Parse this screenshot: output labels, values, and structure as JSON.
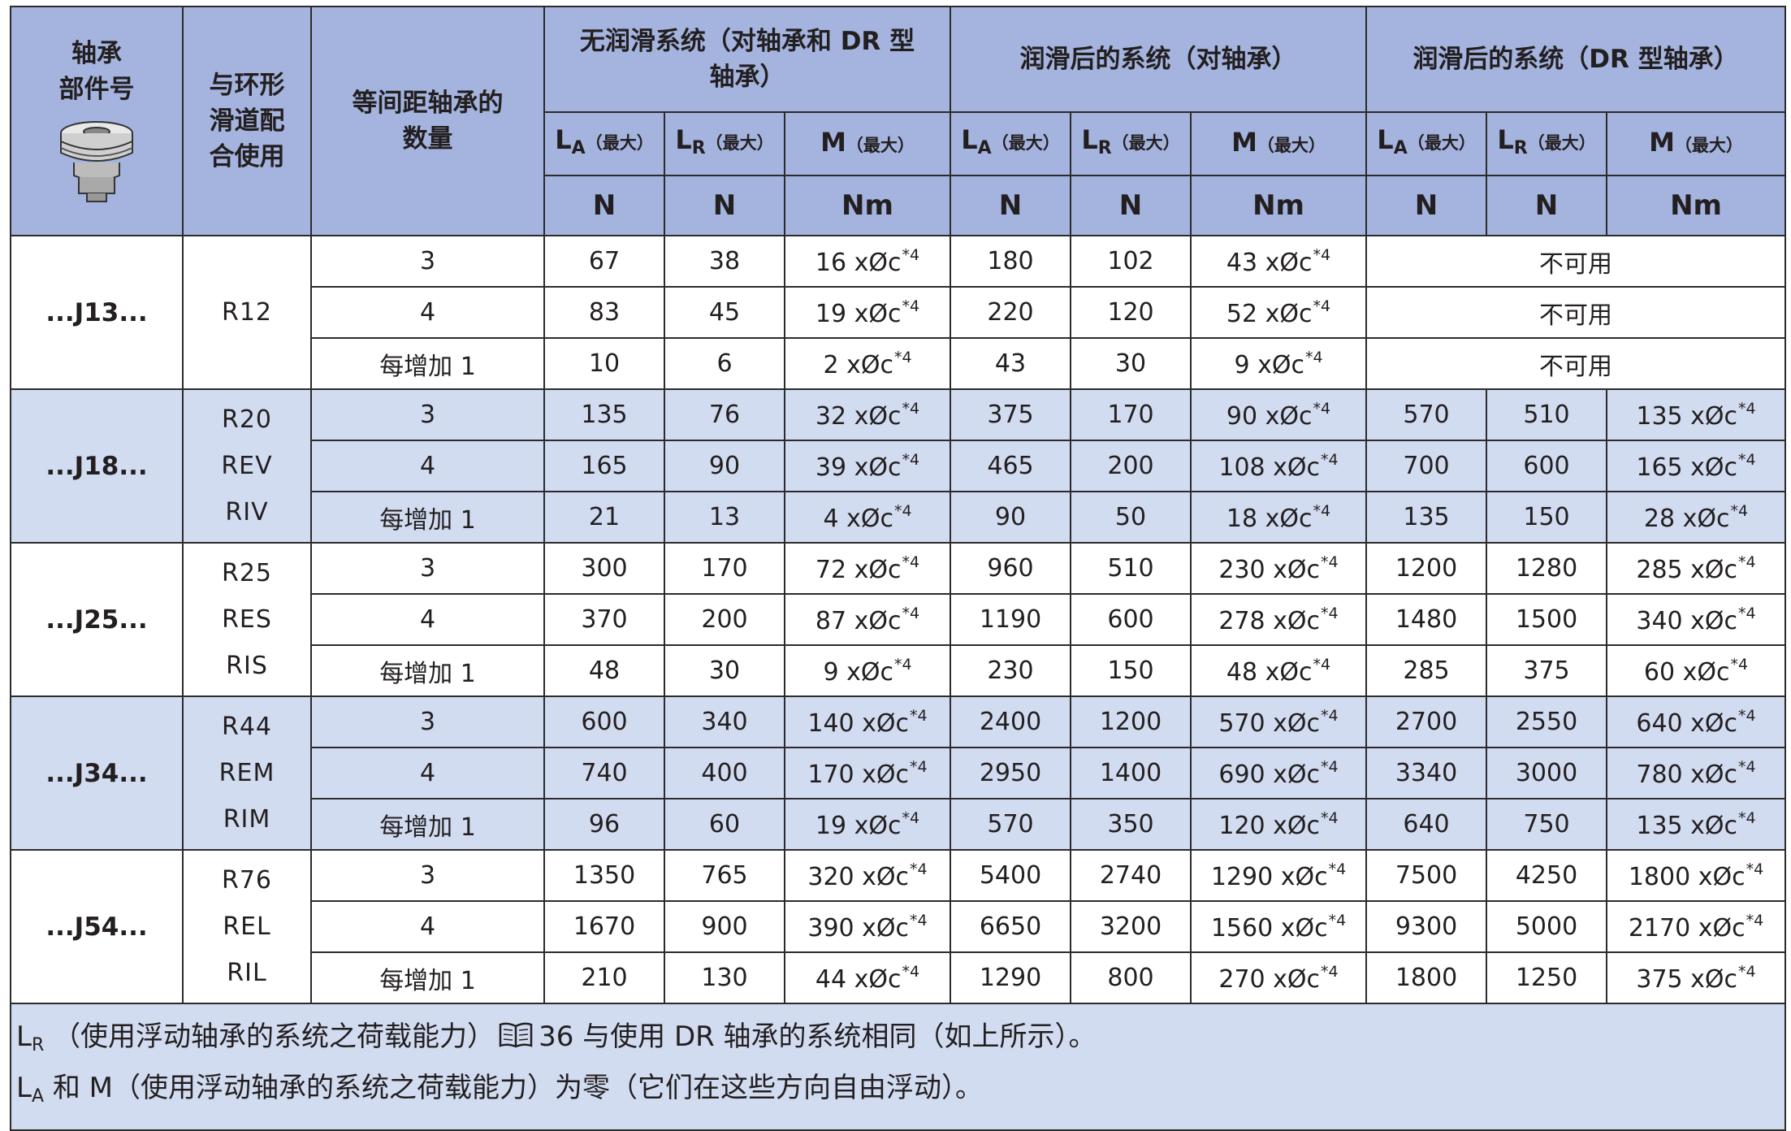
{
  "header": {
    "col_part": [
      "轴承",
      "部件号"
    ],
    "col_ring": [
      "与环形",
      "滑道配",
      "合使用"
    ],
    "col_qty": [
      "等间距轴承的",
      "数量"
    ],
    "group_unlub": [
      "无润滑系统（对轴承和 DR 型",
      "轴承）"
    ],
    "group_lub_bearing": "润滑后的系统（对轴承）",
    "group_lub_dr": "润滑后的系统（DR 型轴承）",
    "sub_la": "LA",
    "sub_lr": "LR",
    "sub_m": "M",
    "sub_max": "（最大）",
    "unit_n": "N",
    "unit_nm": "Nm",
    "bearing_icon": "bearing-illustration-icon"
  },
  "groups": [
    {
      "part": "...J13...",
      "rings": [
        "R12"
      ],
      "rows": [
        {
          "qty": "3",
          "u_la": "67",
          "u_lr": "38",
          "u_m": "16 xØc",
          "l_la": "180",
          "l_lr": "102",
          "l_m": "43 xØc",
          "na": "不可用"
        },
        {
          "qty": "4",
          "u_la": "83",
          "u_lr": "45",
          "u_m": "19 xØc",
          "l_la": "220",
          "l_lr": "120",
          "l_m": "52 xØc",
          "na": "不可用"
        },
        {
          "qty": "每增加 1",
          "u_la": "10",
          "u_lr": "6",
          "u_m": "2 xØc",
          "l_la": "43",
          "l_lr": "30",
          "l_m": "9 xØc",
          "na": "不可用"
        }
      ]
    },
    {
      "part": "...J18...",
      "rings": [
        "R20",
        "REV",
        "RIV"
      ],
      "rows": [
        {
          "qty": "3",
          "u_la": "135",
          "u_lr": "76",
          "u_m": "32 xØc",
          "l_la": "375",
          "l_lr": "170",
          "l_m": "90 xØc",
          "d_la": "570",
          "d_lr": "510",
          "d_m": "135 xØc"
        },
        {
          "qty": "4",
          "u_la": "165",
          "u_lr": "90",
          "u_m": "39 xØc",
          "l_la": "465",
          "l_lr": "200",
          "l_m": "108 xØc",
          "d_la": "700",
          "d_lr": "600",
          "d_m": "165 xØc"
        },
        {
          "qty": "每增加 1",
          "u_la": "21",
          "u_lr": "13",
          "u_m": "4 xØc",
          "l_la": "90",
          "l_lr": "50",
          "l_m": "18 xØc",
          "d_la": "135",
          "d_lr": "150",
          "d_m": "28 xØc"
        }
      ]
    },
    {
      "part": "...J25...",
      "rings": [
        "R25",
        "RES",
        "RIS"
      ],
      "rows": [
        {
          "qty": "3",
          "u_la": "300",
          "u_lr": "170",
          "u_m": "72 xØc",
          "l_la": "960",
          "l_lr": "510",
          "l_m": "230 xØc",
          "d_la": "1200",
          "d_lr": "1280",
          "d_m": "285 xØc"
        },
        {
          "qty": "4",
          "u_la": "370",
          "u_lr": "200",
          "u_m": "87 xØc",
          "l_la": "1190",
          "l_lr": "600",
          "l_m": "278 xØc",
          "d_la": "1480",
          "d_lr": "1500",
          "d_m": "340 xØc"
        },
        {
          "qty": "每增加 1",
          "u_la": "48",
          "u_lr": "30",
          "u_m": "9 xØc",
          "l_la": "230",
          "l_lr": "150",
          "l_m": "48 xØc",
          "d_la": "285",
          "d_lr": "375",
          "d_m": "60 xØc"
        }
      ]
    },
    {
      "part": "...J34...",
      "rings": [
        "R44",
        "REM",
        "RIM"
      ],
      "rows": [
        {
          "qty": "3",
          "u_la": "600",
          "u_lr": "340",
          "u_m": "140 xØc",
          "l_la": "2400",
          "l_lr": "1200",
          "l_m": "570 xØc",
          "d_la": "2700",
          "d_lr": "2550",
          "d_m": "640 xØc"
        },
        {
          "qty": "4",
          "u_la": "740",
          "u_lr": "400",
          "u_m": "170 xØc",
          "l_la": "2950",
          "l_lr": "1400",
          "l_m": "690 xØc",
          "d_la": "3340",
          "d_lr": "3000",
          "d_m": "780 xØc"
        },
        {
          "qty": "每增加 1",
          "u_la": "96",
          "u_lr": "60",
          "u_m": "19 xØc",
          "l_la": "570",
          "l_lr": "350",
          "l_m": "120 xØc",
          "d_la": "640",
          "d_lr": "750",
          "d_m": "135 xØc"
        }
      ]
    },
    {
      "part": "...J54...",
      "rings": [
        "R76",
        "REL",
        "RIL"
      ],
      "rows": [
        {
          "qty": "3",
          "u_la": "1350",
          "u_lr": "765",
          "u_m": "320 xØc",
          "l_la": "5400",
          "l_lr": "2740",
          "l_m": "1290 xØc",
          "d_la": "7500",
          "d_lr": "4250",
          "d_m": "1800 xØc"
        },
        {
          "qty": "4",
          "u_la": "1670",
          "u_lr": "900",
          "u_m": "390 xØc",
          "l_la": "6650",
          "l_lr": "3200",
          "l_m": "1560 xØc",
          "d_la": "9300",
          "d_lr": "5000",
          "d_m": "2170 xØc"
        },
        {
          "qty": "每增加 1",
          "u_la": "210",
          "u_lr": "130",
          "u_m": "44 xØc",
          "l_la": "1290",
          "l_lr": "800",
          "l_m": "270 xØc",
          "d_la": "1800",
          "d_lr": "1250",
          "d_m": "375 xØc"
        }
      ]
    }
  ],
  "footnote_mark": "*4",
  "notes": {
    "line1_lr": "L",
    "line1_lr_sub": "R",
    "line1_text_a": "（使用浮动轴承的系统之荷载能力）",
    "line1_page": "36",
    "line1_text_b": " 与使用 DR 轴承的系统相同（如上所示）。",
    "book_icon": "book-icon",
    "line2_la": "L",
    "line2_la_sub": "A",
    "line2_text": " 和 M（使用浮动轴承的系统之荷载能力）为零（它们在这些方向自由浮动）。"
  },
  "colors": {
    "header_bg": "#a4b4de",
    "row_shaded": "#d2dcf1",
    "row_plain": "#ffffff",
    "border": "#2b2b2b"
  }
}
